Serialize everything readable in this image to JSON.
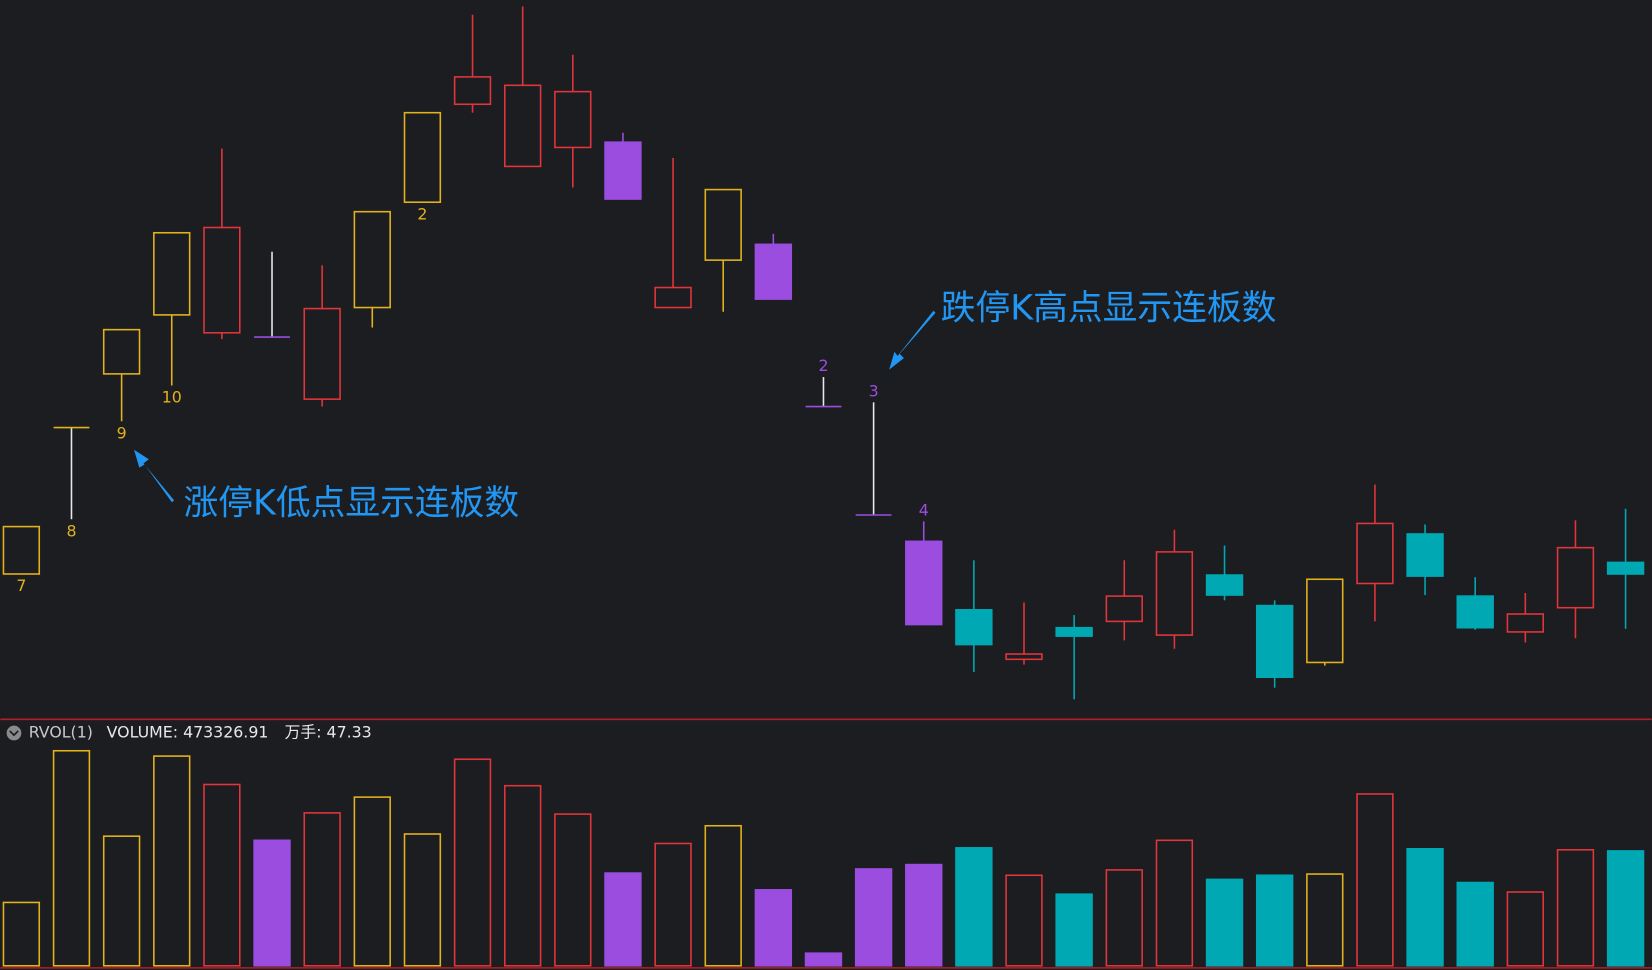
{
  "chart_data": {
    "type": "candlestick",
    "open": [
      13.5,
      27.4,
      32.5,
      38.1,
      36.4,
      44.1,
      30.1,
      38.8,
      48.8,
      58.1,
      52.2,
      54.0,
      54.5,
      38.8,
      43.3,
      44.8,
      32.2,
      29.8,
      16.6,
      10.1,
      5.4,
      8.4,
      9.0,
      7.7,
      13.4,
      10.5,
      5.1,
      12.6,
      17.3,
      11.4,
      8.0,
      10.3,
      14.6
    ],
    "high": [
      18.0,
      27.4,
      36.7,
      45.9,
      53.9,
      44.1,
      42.8,
      47.9,
      57.3,
      66.6,
      67.4,
      62.8,
      55.4,
      53.0,
      50.0,
      45.8,
      32.2,
      29.8,
      18.5,
      14.8,
      10.8,
      9.6,
      14.8,
      17.7,
      16.2,
      11.0,
      13.0,
      22.0,
      18.2,
      13.2,
      11.7,
      18.6,
      19.7
    ],
    "low": [
      13.5,
      18.7,
      28.0,
      31.4,
      35.8,
      36.0,
      29.4,
      36.9,
      48.8,
      57.3,
      52.2,
      50.2,
      49.1,
      38.8,
      38.4,
      39.6,
      29.4,
      19.1,
      8.7,
      4.2,
      4.9,
      1.6,
      7.2,
      6.4,
      11.0,
      2.7,
      4.8,
      9.0,
      11.5,
      8.2,
      7.0,
      7.4,
      8.3
    ],
    "close": [
      18.0,
      27.4,
      36.7,
      45.9,
      46.4,
      36.0,
      38.7,
      47.9,
      57.3,
      60.7,
      59.9,
      59.3,
      49.1,
      40.7,
      50.0,
      39.6,
      29.4,
      19.1,
      8.7,
      6.8,
      5.9,
      7.6,
      11.4,
      15.6,
      11.5,
      3.7,
      13.0,
      18.3,
      13.3,
      8.4,
      9.7,
      16.0,
      13.5
    ],
    "kinds": [
      "limit_up",
      "one_price",
      "limit_up",
      "limit_up",
      "up",
      "one_price",
      "up",
      "limit_up",
      "limit_up",
      "up",
      "up",
      "up",
      "limit_down",
      "up",
      "limit_up",
      "limit_down",
      "one_price",
      "one_price",
      "limit_down",
      "down",
      "up",
      "down",
      "up",
      "up",
      "down",
      "down",
      "limit_up",
      "up",
      "down",
      "down",
      "up",
      "up",
      "down"
    ],
    "counts": [
      7,
      8,
      9,
      10,
      null,
      null,
      null,
      null,
      2,
      null,
      null,
      null,
      null,
      null,
      null,
      null,
      2,
      3,
      4,
      null,
      null,
      null,
      null,
      null,
      null,
      null,
      null,
      null,
      null,
      null,
      null,
      null,
      null
    ],
    "colors": {
      "limit_up": "#e2b21c",
      "up": "#e0353a",
      "limit_down": "#9b4de0",
      "down": "#00a8b3",
      "one_price": "#e8e8e8"
    },
    "ylim": [
      0,
      68
    ],
    "annotations": [
      "涨停K低点显示连板数",
      "跌停K高点显示连板数"
    ],
    "volume": {
      "type": "bar",
      "indicator": "RVOL(1)",
      "volume_label": "VOLUME: 473326.91",
      "unit_label": "万手: 47.33",
      "values": [
        26.1,
        88.6,
        53.4,
        86.4,
        74.7,
        51.7,
        63.0,
        69.5,
        54.3,
        85.1,
        74.2,
        62.5,
        38.2,
        50.4,
        57.7,
        31.3,
        5.2,
        39.9,
        41.7,
        48.6,
        37.3,
        29.5,
        39.5,
        51.7,
        35.6,
        37.3,
        37.8,
        70.8,
        48.2,
        34.3,
        30.4,
        47.8,
        47.33
      ],
      "ylim": [
        0,
        92
      ]
    }
  }
}
